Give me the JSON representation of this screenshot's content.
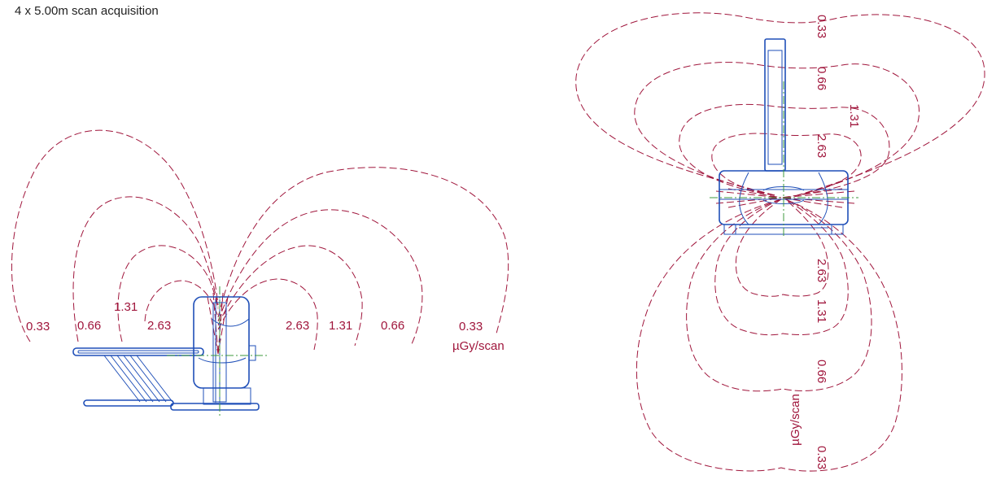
{
  "title": "4 x 5.00m scan acquisition",
  "side_view": {
    "left_labels": [
      "0.33",
      "0.66",
      "1.31",
      "2.63"
    ],
    "right_labels": [
      "2.63",
      "1.31",
      "0.66",
      "0.33"
    ],
    "unit": "µGy/scan"
  },
  "top_view": {
    "upper_labels": [
      "0.33",
      "0.66",
      "1.31",
      "2.63"
    ],
    "lower_labels": [
      "2.63",
      "1.31",
      "0.66",
      "0.33"
    ],
    "unit": "µGy/scan"
  },
  "colors": {
    "isodose": "#a0163c",
    "equipment": "#1f4fb8",
    "centerline": "#3d9a3d"
  }
}
